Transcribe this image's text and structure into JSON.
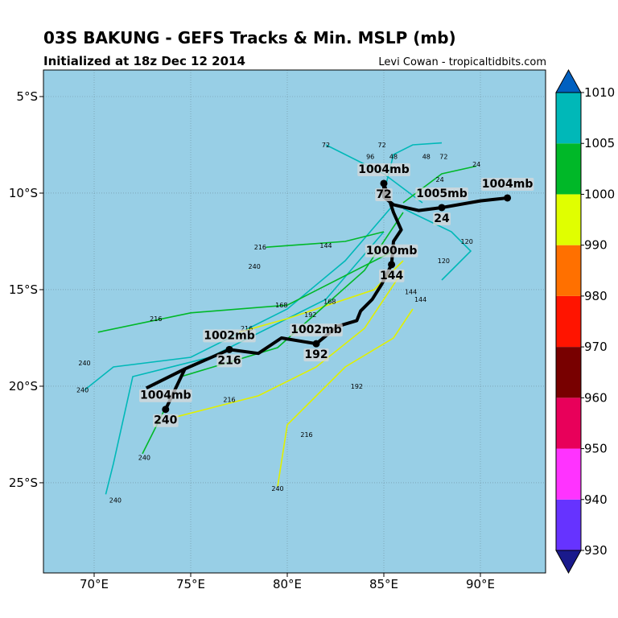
{
  "chart_data": {
    "type": "track-map",
    "title": "03S BAKUNG - GEFS Tracks & Min. MSLP (mb)",
    "subtitle": "Initialized at 18z Dec 12 2014",
    "credit": "Levi Cowan - tropicaltidbits.com",
    "background": "#98cfe6",
    "grid": true,
    "xlim": [
      67.375,
      93.375
    ],
    "ylim": [
      -29.67,
      -3.625
    ],
    "xticks": [
      {
        "value": 70,
        "label": "70°E"
      },
      {
        "value": 75,
        "label": "75°E"
      },
      {
        "value": 80,
        "label": "80°E"
      },
      {
        "value": 85,
        "label": "85°E"
      },
      {
        "value": 90,
        "label": "90°E"
      }
    ],
    "yticks": [
      {
        "value": -5,
        "label": "5°S"
      },
      {
        "value": -10,
        "label": "10°S"
      },
      {
        "value": -15,
        "label": "15°S"
      },
      {
        "value": -20,
        "label": "20°S"
      },
      {
        "value": -25,
        "label": "25°S"
      }
    ],
    "tracks": [
      {
        "color": "#00b8b8",
        "lon": [
          85.5,
          83,
          80,
          75,
          71,
          69.5
        ],
        "lat": [
          -10.6,
          -13.5,
          -16,
          -18.5,
          -19,
          -20.2
        ]
      },
      {
        "color": "#00b8b8",
        "lon": [
          85,
          82,
          76,
          72,
          71,
          70.6
        ],
        "lat": [
          -12,
          -15.5,
          -18.5,
          -19.5,
          -24,
          -25.6
        ]
      },
      {
        "color": "#00b828",
        "lon": [
          85.5,
          80,
          75,
          70.2
        ],
        "lat": [
          -13,
          -15.8,
          -16.2,
          -17.2
        ]
      },
      {
        "color": "#e0f000",
        "lon": [
          86,
          84,
          81.5,
          78.5,
          74.2
        ],
        "lat": [
          -14,
          -17,
          -19,
          -20.5,
          -21.6
        ]
      },
      {
        "color": "#e0f000",
        "lon": [
          86.5,
          85.5,
          83,
          80,
          79.5
        ],
        "lat": [
          -16,
          -17.5,
          -19,
          -22,
          -25.2
        ]
      },
      {
        "color": "#e0f000",
        "lon": [
          86,
          84.5,
          80,
          77.5
        ],
        "lat": [
          -13.5,
          -15,
          -16.5,
          -17.2
        ]
      },
      {
        "color": "#00b828",
        "lon": [
          85,
          83,
          78.9
        ],
        "lat": [
          -12,
          -12.5,
          -12.8
        ]
      },
      {
        "color": "#00b8b8",
        "lon": [
          87,
          85,
          82
        ],
        "lat": [
          -10.5,
          -9,
          -7.5
        ]
      },
      {
        "color": "#00b828",
        "lon": [
          86,
          88,
          89.8
        ],
        "lat": [
          -10.5,
          -9,
          -8.6
        ]
      },
      {
        "color": "#00b8b8",
        "lon": [
          86,
          88.5,
          89.5,
          88
        ],
        "lat": [
          -10.8,
          -12,
          -13,
          -14.5
        ]
      },
      {
        "color": "#00b828",
        "lon": [
          86,
          84,
          79.5,
          74.5,
          72.5
        ],
        "lat": [
          -11,
          -14,
          -18,
          -19.5,
          -23.5
        ]
      },
      {
        "color": "#00b8b8",
        "lon": [
          85,
          85.5,
          86.5,
          88
        ],
        "lat": [
          -10,
          -8,
          -7.5,
          -7.4
        ]
      }
    ],
    "mean_track": {
      "color": "#000000",
      "lon": [
        91.4,
        90.0,
        88.0,
        86.8,
        85.5,
        85.0,
        85.0,
        85.5,
        85.9,
        85.5,
        85.4,
        84.9,
        84.4,
        83.8,
        83.6,
        82.6,
        81.5,
        79.7,
        78.5,
        77.0,
        74.7,
        73.7,
        null,
        74.7,
        72.7
      ],
      "lat": [
        -10.25,
        -10.4,
        -10.75,
        -10.9,
        -10.6,
        -10.2,
        -9.5,
        -11.0,
        -11.9,
        -12.5,
        -13.7,
        -14.7,
        -15.5,
        -16.1,
        -16.6,
        -16.9,
        -17.8,
        -17.5,
        -18.3,
        -18.1,
        -19.1,
        -21.2,
        null,
        -19.1,
        -20.1
      ]
    },
    "markers": [
      {
        "lon": 91.4,
        "lat": -10.25,
        "pressure": "1004mb"
      },
      {
        "lon": 88.0,
        "lat": -10.75,
        "pressure": "1005mb",
        "hour": "24"
      },
      {
        "lon": 85.0,
        "lat": -9.5,
        "pressure": "1004mb",
        "hour": "72"
      },
      {
        "lon": 85.4,
        "lat": -13.7,
        "pressure": "1000mb",
        "hour": "144"
      },
      {
        "lon": 81.5,
        "lat": -17.8,
        "pressure": "1002mb",
        "hour": "192"
      },
      {
        "lon": 77.0,
        "lat": -18.1,
        "pressure": "1002mb",
        "hour": "216"
      },
      {
        "lon": 73.7,
        "lat": -21.2,
        "pressure": "1004mb",
        "hour": "240"
      }
    ],
    "annotations": [
      {
        "text": "72",
        "lon": 82.0,
        "lat": -7.5
      },
      {
        "text": "96",
        "lon": 84.3,
        "lat": -8.1
      },
      {
        "text": "72",
        "lon": 84.9,
        "lat": -7.5
      },
      {
        "text": "48",
        "lon": 85.5,
        "lat": -8.1
      },
      {
        "text": "48",
        "lon": 87.2,
        "lat": -8.1
      },
      {
        "text": "72",
        "lon": 88.1,
        "lat": -8.1
      },
      {
        "text": "24",
        "lon": 89.8,
        "lat": -8.5
      },
      {
        "text": "24",
        "lon": 87.9,
        "lat": -9.3
      },
      {
        "text": "120",
        "lon": 89.3,
        "lat": -12.5
      },
      {
        "text": "120",
        "lon": 88.1,
        "lat": -13.5
      },
      {
        "text": "144",
        "lon": 82.0,
        "lat": -12.7
      },
      {
        "text": "216",
        "lon": 78.6,
        "lat": -12.8
      },
      {
        "text": "240",
        "lon": 78.3,
        "lat": -13.8
      },
      {
        "text": "216",
        "lon": 73.2,
        "lat": -16.5
      },
      {
        "text": "240",
        "lon": 69.5,
        "lat": -18.8
      },
      {
        "text": "240",
        "lon": 69.4,
        "lat": -20.2
      },
      {
        "text": "240",
        "lon": 71.1,
        "lat": -25.9
      },
      {
        "text": "240",
        "lon": 72.6,
        "lat": -23.7
      },
      {
        "text": "216",
        "lon": 77.0,
        "lat": -20.7
      },
      {
        "text": "216",
        "lon": 81.0,
        "lat": -22.5
      },
      {
        "text": "192",
        "lon": 83.6,
        "lat": -20.0
      },
      {
        "text": "240",
        "lon": 79.5,
        "lat": -25.3
      },
      {
        "text": "168",
        "lon": 79.7,
        "lat": -15.8
      },
      {
        "text": "144",
        "lon": 86.4,
        "lat": -15.1
      },
      {
        "text": "144",
        "lon": 86.9,
        "lat": -15.5
      },
      {
        "text": "168",
        "lon": 82.2,
        "lat": -15.6
      },
      {
        "text": "192",
        "lon": 81.2,
        "lat": -16.3
      },
      {
        "text": "216",
        "lon": 77.9,
        "lat": -17.0
      }
    ],
    "colorbar": {
      "levels": [
        930,
        940,
        950,
        960,
        970,
        980,
        990,
        1000,
        1005,
        1010
      ],
      "colors": [
        "#6633ff",
        "#ff33ff",
        "#e8005a",
        "#780000",
        "#ff1400",
        "#ff7000",
        "#e0ff00",
        "#00b828",
        "#00b8b8"
      ],
      "under": "#1a1a8c",
      "over": "#0060c0"
    }
  }
}
